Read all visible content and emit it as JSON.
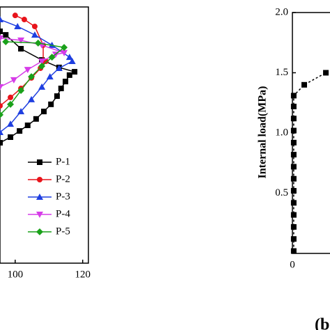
{
  "chart_data": [
    {
      "type": "line",
      "xlim": [
        95.5,
        121.7
      ],
      "ylim": [
        0,
        100
      ],
      "xticks": [
        100,
        120
      ],
      "legend": "lower-right",
      "series": [
        {
          "name": "P-1",
          "color": "#000000",
          "marker": "square",
          "x": [
            95.5,
            98.6,
            101.3,
            103.7,
            106.2,
            108.5,
            110.6,
            112.4,
            113.6,
            114.9,
            116.1,
            117.6,
            113.0,
            107.9,
            101.7,
            97.2,
            95.5
          ],
          "values": [
            47.0,
            49.2,
            51.6,
            53.8,
            56.3,
            59.2,
            62.0,
            65.2,
            68.2,
            70.9,
            73.4,
            74.7,
            76.4,
            79.3,
            83.7,
            89.1,
            90.5
          ]
        },
        {
          "name": "P-2",
          "color": "#e8141b",
          "marker": "circle",
          "x": [
            95.5,
            98.6,
            101.7,
            104.8,
            107.5,
            109.1,
            108.3,
            108.3,
            105.8,
            102.7,
            100.0
          ],
          "values": [
            61.4,
            64.7,
            68.2,
            72.3,
            76.1,
            78.8,
            78.8,
            85.1,
            92.4,
            95.1,
            96.7
          ]
        },
        {
          "name": "P-3",
          "color": "#1f3fe0",
          "marker": "triangle",
          "x": [
            95.5,
            98.6,
            101.7,
            104.8,
            107.9,
            110.3,
            113.0,
            116.9,
            116.1,
            110.9,
            105.8,
            100.7,
            95.5
          ],
          "values": [
            51.1,
            54.3,
            59.2,
            63.9,
            68.8,
            72.8,
            76.1,
            78.8,
            80.4,
            85.1,
            89.1,
            92.4,
            95.1
          ]
        },
        {
          "name": "P-4",
          "color": "#d63ce8",
          "marker": "triangle-down",
          "x": [
            95.5,
            99.6,
            103.7,
            107.9,
            112.0,
            114.5,
            107.9,
            101.7,
            95.5
          ],
          "values": [
            68.8,
            71.5,
            75.5,
            78.8,
            81.5,
            82.1,
            85.1,
            87.0,
            87.8
          ]
        },
        {
          "name": "P-5",
          "color": "#1aa11a",
          "marker": "diamond",
          "x": [
            95.5,
            98.6,
            101.7,
            104.8,
            107.9,
            110.9,
            114.5,
            106.8,
            97.2
          ],
          "values": [
            57.9,
            62.0,
            67.4,
            72.8,
            76.9,
            80.4,
            84.2,
            85.9,
            86.4
          ]
        }
      ]
    },
    {
      "type": "line",
      "ylabel": "Internal load(MPa)",
      "label": "(b)",
      "xlim": [
        0,
        10
      ],
      "ylim": [
        0,
        2.0
      ],
      "xticks": [
        0
      ],
      "yticks": [
        0.5,
        {
          "value": 1,
          "label": "1.0"
        },
        1.5,
        {
          "value": 2,
          "label": "2.0"
        }
      ],
      "color": "#000000",
      "marker": "square",
      "x": [
        0.07,
        0.07,
        0.07,
        0.07,
        0.07,
        0.07,
        0.07,
        0.07,
        0.07,
        0.07,
        0.07,
        0.07,
        0.07,
        0.07,
        0.63,
        1.78
      ],
      "values": [
        0.02,
        0.12,
        0.22,
        0.32,
        0.42,
        0.52,
        0.62,
        0.72,
        0.82,
        0.92,
        1.02,
        1.12,
        1.22,
        1.31,
        1.4,
        1.5
      ]
    }
  ]
}
